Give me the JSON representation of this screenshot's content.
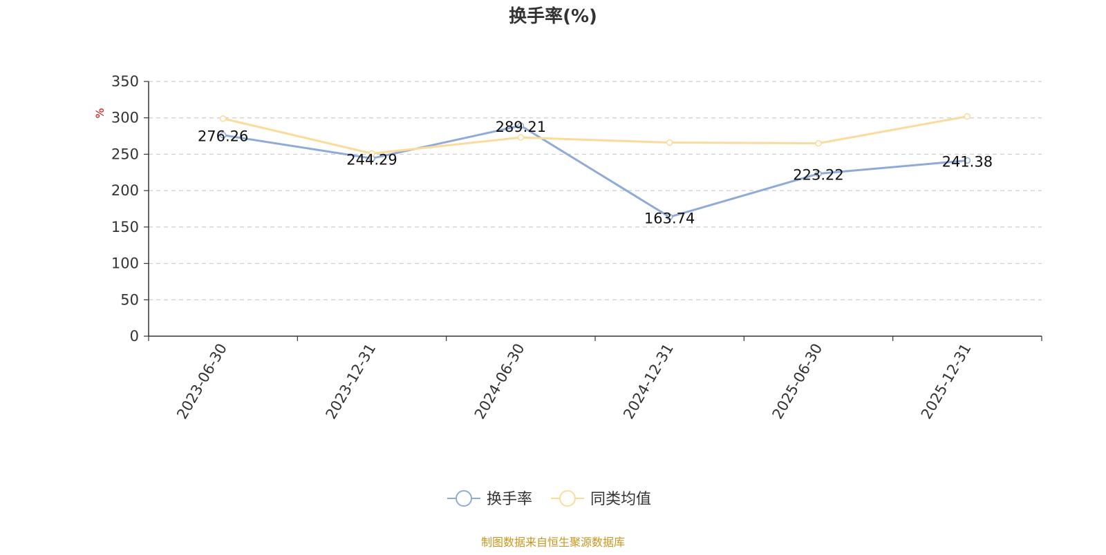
{
  "chart_data": {
    "type": "line",
    "title": "换手率(%)",
    "ylabel": "%",
    "ylim": [
      0,
      350
    ],
    "yticks": [
      0,
      50,
      100,
      150,
      200,
      250,
      300,
      350
    ],
    "grid": true,
    "legend_position": "bottom-center",
    "categories": [
      "2023-06-30",
      "2023-12-31",
      "2024-06-30",
      "2024-12-31",
      "2025-06-30",
      "2025-12-31"
    ],
    "series": [
      {
        "name": "换手率",
        "color": "#8eaad8",
        "values": [
          276.26,
          244.29,
          289.21,
          163.74,
          223.22,
          241.38
        ],
        "labels": [
          "276.26",
          "244.29",
          "289.21",
          "163.74",
          "223.22",
          "241.38"
        ]
      },
      {
        "name": "同类均值",
        "color": "#fcdb9a",
        "values": [
          299,
          251,
          273,
          266,
          265,
          302
        ]
      }
    ],
    "source": "制图数据来自恒生聚源数据库"
  }
}
